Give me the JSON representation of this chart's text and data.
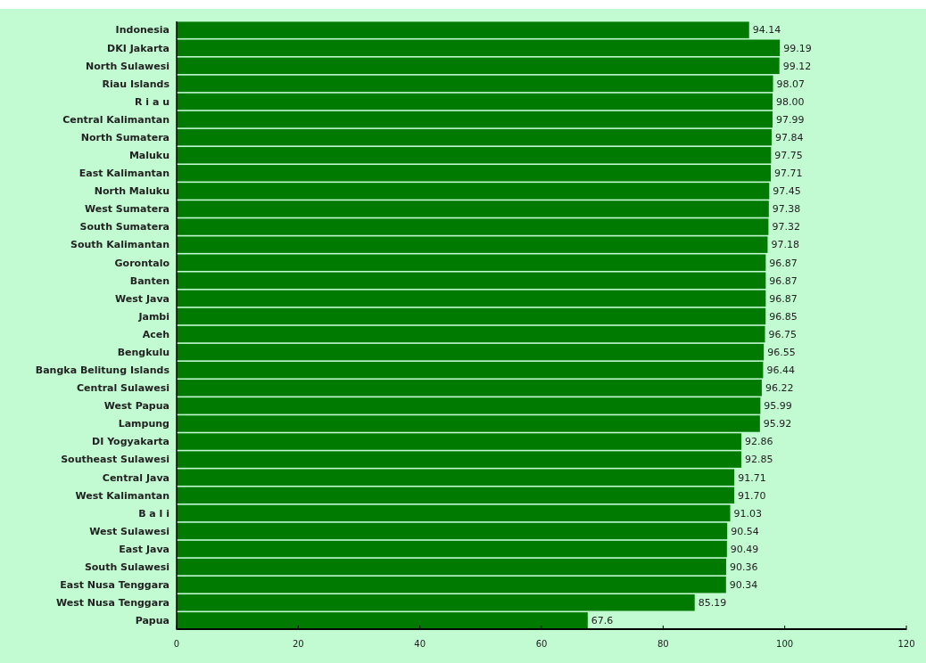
{
  "chart_data": {
    "type": "bar",
    "orientation": "horizontal",
    "categories": [
      "Indonesia",
      "DKI Jakarta",
      "North Sulawesi",
      "Riau Islands",
      "R i a u",
      "Central Kalimantan",
      "North Sumatera",
      "Maluku",
      "East Kalimantan",
      "North Maluku",
      "West Sumatera",
      "South Sumatera",
      "South Kalimantan",
      "Gorontalo",
      "Banten",
      "West Java",
      "Jambi",
      "Aceh",
      "Bengkulu",
      "Bangka Belitung Islands",
      "Central Sulawesi",
      "West Papua",
      "Lampung",
      "DI Yogyakarta",
      "Southeast Sulawesi",
      "Central Java",
      "West Kalimantan",
      "B a l i",
      "West Sulawesi",
      "East Java",
      "South Sulawesi",
      "East Nusa Tenggara",
      "West Nusa Tenggara",
      "Papua"
    ],
    "values": [
      94.14,
      99.19,
      99.12,
      98.07,
      98.0,
      97.99,
      97.84,
      97.75,
      97.71,
      97.45,
      97.38,
      97.32,
      97.18,
      96.87,
      96.87,
      96.87,
      96.85,
      96.75,
      96.55,
      96.44,
      96.22,
      95.99,
      95.92,
      92.86,
      92.85,
      91.71,
      91.7,
      91.03,
      90.54,
      90.49,
      90.36,
      90.34,
      85.19,
      67.6
    ],
    "value_labels": [
      "94.14",
      "99.19",
      "99.12",
      "98.07",
      "98.00",
      "97.99",
      "97.84",
      "97.75",
      "97.71",
      "97.45",
      "97.38",
      "97.32",
      "97.18",
      "96.87",
      "96.87",
      "96.87",
      "96.85",
      "96.75",
      "96.55",
      "96.44",
      "96.22",
      "95.99",
      "95.92",
      "92.86",
      "92.85",
      "91.71",
      "91.70",
      "91.03",
      "90.54",
      "90.49",
      "90.36",
      "90.34",
      "85.19",
      "67.6"
    ],
    "color": "#007a00",
    "xlim": [
      0,
      120
    ],
    "xticks": [
      0,
      20,
      40,
      60,
      80,
      100,
      120
    ],
    "grid": false
  }
}
